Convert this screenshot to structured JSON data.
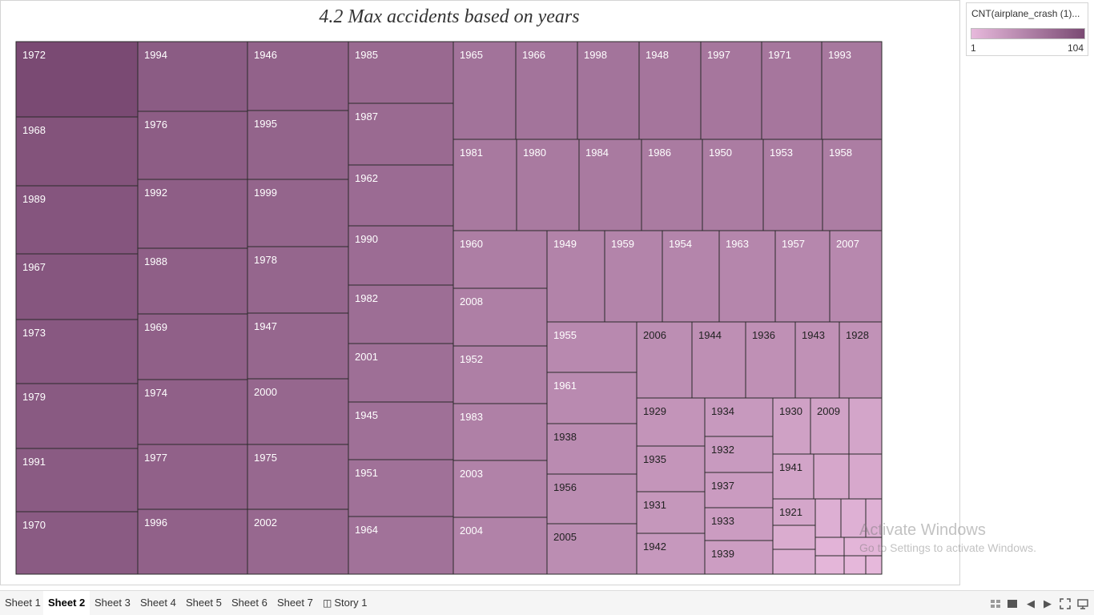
{
  "chart_data": {
    "type": "treemap",
    "title": "4.2 Max accidents based on years",
    "legend": {
      "title": "CNT(airplane_crash (1)...",
      "min": "1",
      "max": "104",
      "color_low": "#e7b9dc",
      "color_high": "#7a4a73",
      "placement": "top-right"
    },
    "tiles": [
      {
        "label": "1972"
      },
      {
        "label": "1968"
      },
      {
        "label": "1989"
      },
      {
        "label": "1967"
      },
      {
        "label": "1973"
      },
      {
        "label": "1979"
      },
      {
        "label": "1991"
      },
      {
        "label": "1970"
      },
      {
        "label": "1994"
      },
      {
        "label": "1976"
      },
      {
        "label": "1992"
      },
      {
        "label": "1988"
      },
      {
        "label": "1969"
      },
      {
        "label": "1974"
      },
      {
        "label": "1977"
      },
      {
        "label": "1996"
      },
      {
        "label": "1946"
      },
      {
        "label": "1995"
      },
      {
        "label": "1999"
      },
      {
        "label": "1978"
      },
      {
        "label": "1947"
      },
      {
        "label": "2000"
      },
      {
        "label": "1975"
      },
      {
        "label": "2002"
      },
      {
        "label": "1985"
      },
      {
        "label": "1987"
      },
      {
        "label": "1962"
      },
      {
        "label": "1990"
      },
      {
        "label": "1982"
      },
      {
        "label": "2001"
      },
      {
        "label": "1945"
      },
      {
        "label": "1951"
      },
      {
        "label": "1964"
      },
      {
        "label": "1965"
      },
      {
        "label": "1966"
      },
      {
        "label": "1998"
      },
      {
        "label": "1948"
      },
      {
        "label": "1997"
      },
      {
        "label": "1971"
      },
      {
        "label": "1993"
      },
      {
        "label": "1981"
      },
      {
        "label": "1980"
      },
      {
        "label": "1984"
      },
      {
        "label": "1986"
      },
      {
        "label": "1950"
      },
      {
        "label": "1953"
      },
      {
        "label": "1958"
      },
      {
        "label": "1960"
      },
      {
        "label": "2008"
      },
      {
        "label": "1952"
      },
      {
        "label": "1983"
      },
      {
        "label": "2003"
      },
      {
        "label": "2004"
      },
      {
        "label": "1949"
      },
      {
        "label": "1959"
      },
      {
        "label": "1954"
      },
      {
        "label": "1963"
      },
      {
        "label": "1957"
      },
      {
        "label": "2007"
      },
      {
        "label": "1955"
      },
      {
        "label": "1961"
      },
      {
        "label": "1938"
      },
      {
        "label": "1956"
      },
      {
        "label": "2005"
      },
      {
        "label": "2006"
      },
      {
        "label": "1944"
      },
      {
        "label": "1936"
      },
      {
        "label": "1943"
      },
      {
        "label": "1928"
      },
      {
        "label": "1929"
      },
      {
        "label": "1935"
      },
      {
        "label": "1931"
      },
      {
        "label": "1942"
      },
      {
        "label": "1934"
      },
      {
        "label": "1932"
      },
      {
        "label": "1937"
      },
      {
        "label": "1933"
      },
      {
        "label": "1939"
      },
      {
        "label": "1930"
      },
      {
        "label": "2009"
      },
      {
        "label": "1941"
      },
      {
        "label": "1921"
      },
      {
        "label": ""
      },
      {
        "label": ""
      },
      {
        "label": ""
      },
      {
        "label": ""
      },
      {
        "label": ""
      },
      {
        "label": ""
      },
      {
        "label": ""
      },
      {
        "label": ""
      },
      {
        "label": ""
      },
      {
        "label": ""
      },
      {
        "label": ""
      },
      {
        "label": ""
      },
      {
        "label": ""
      },
      {
        "label": ""
      },
      {
        "label": ""
      },
      {
        "label": ""
      }
    ]
  },
  "tabs": [
    {
      "label": "Sheet 1",
      "active": false
    },
    {
      "label": "Sheet 2",
      "active": true
    },
    {
      "label": "Sheet 3",
      "active": false
    },
    {
      "label": "Sheet 4",
      "active": false
    },
    {
      "label": "Sheet 5",
      "active": false
    },
    {
      "label": "Sheet 6",
      "active": false
    },
    {
      "label": "Sheet 7",
      "active": false
    },
    {
      "label": "Story 1",
      "active": false
    }
  ],
  "toolbar_icons": [
    "show-sheet-sorter-icon",
    "show-filmstrip-icon",
    "previous-sheet-icon",
    "next-sheet-icon",
    "fit-to-window-icon",
    "presentation-mode-icon"
  ],
  "watermark": {
    "title": "Activate Windows",
    "subtitle": "Go to Settings to activate Windows."
  }
}
